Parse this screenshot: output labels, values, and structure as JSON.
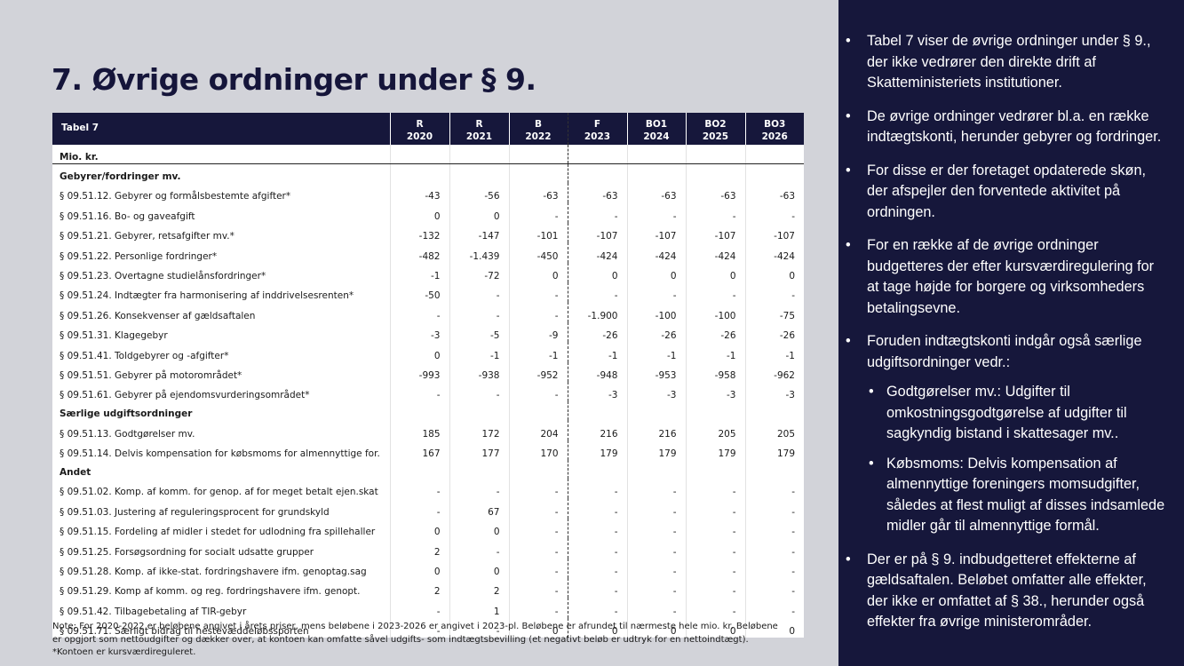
{
  "title": "7. Øvrige ordninger under § 9.",
  "table": {
    "label": "Tabel 7",
    "columns": [
      {
        "top": "R",
        "bottom": "2020"
      },
      {
        "top": "R",
        "bottom": "2021"
      },
      {
        "top": "B",
        "bottom": "2022"
      },
      {
        "top": "F",
        "bottom": "2023"
      },
      {
        "top": "BO1",
        "bottom": "2024"
      },
      {
        "top": "BO2",
        "bottom": "2025"
      },
      {
        "top": "BO3",
        "bottom": "2026"
      }
    ],
    "units": "Mio. kr.",
    "sections": [
      {
        "name": "Gebyrer/fordringer mv.",
        "rows": [
          {
            "label": "§ 09.51.12. Gebyrer og formålsbestemte afgifter*",
            "values": [
              "-43",
              "-56",
              "-63",
              "-63",
              "-63",
              "-63",
              "-63"
            ]
          },
          {
            "label": "§ 09.51.16. Bo- og gaveafgift",
            "values": [
              "0",
              "0",
              "-",
              "-",
              "-",
              "-",
              "-"
            ]
          },
          {
            "label": "§ 09.51.21. Gebyrer, retsafgifter mv.*",
            "values": [
              "-132",
              "-147",
              "-101",
              "-107",
              "-107",
              "-107",
              "-107"
            ]
          },
          {
            "label": "§ 09.51.22. Personlige fordringer*",
            "values": [
              "-482",
              "-1.439",
              "-450",
              "-424",
              "-424",
              "-424",
              "-424"
            ]
          },
          {
            "label": "§ 09.51.23. Overtagne studielånsfordringer*",
            "values": [
              "-1",
              "-72",
              "0",
              "0",
              "0",
              "0",
              "0"
            ]
          },
          {
            "label": "§ 09.51.24. Indtægter fra harmonisering af inddrivelsesrenten*",
            "values": [
              "-50",
              "-",
              "-",
              "-",
              "-",
              "-",
              "-"
            ]
          },
          {
            "label": "§ 09.51.26. Konsekvenser af gældsaftalen",
            "values": [
              "-",
              "-",
              "-",
              "-1.900",
              "-100",
              "-100",
              "-75"
            ]
          },
          {
            "label": "§ 09.51.31. Klagegebyr",
            "values": [
              "-3",
              "-5",
              "-9",
              "-26",
              "-26",
              "-26",
              "-26"
            ]
          },
          {
            "label": "§ 09.51.41. Toldgebyrer og -afgifter*",
            "values": [
              "0",
              "-1",
              "-1",
              "-1",
              "-1",
              "-1",
              "-1"
            ]
          },
          {
            "label": "§ 09.51.51. Gebyrer på motorområdet*",
            "values": [
              "-993",
              "-938",
              "-952",
              "-948",
              "-953",
              "-958",
              "-962"
            ]
          },
          {
            "label": "§ 09.51.61. Gebyrer på ejendomsvurderingsområdet*",
            "values": [
              "-",
              "-",
              "-",
              "-3",
              "-3",
              "-3",
              "-3"
            ]
          }
        ]
      },
      {
        "name": "Særlige udgiftsordninger",
        "rows": [
          {
            "label": "§ 09.51.13. Godtgørelser mv.",
            "values": [
              "185",
              "172",
              "204",
              "216",
              "216",
              "205",
              "205"
            ]
          },
          {
            "label": "§ 09.51.14. Delvis kompensation for købsmoms for almennyttige for.",
            "values": [
              "167",
              "177",
              "170",
              "179",
              "179",
              "179",
              "179"
            ]
          }
        ]
      },
      {
        "name": "Andet",
        "rows": [
          {
            "label": "§ 09.51.02. Komp. af komm. for genop. af for meget betalt ejen.skat",
            "values": [
              "-",
              "-",
              "-",
              "-",
              "-",
              "-",
              "-"
            ]
          },
          {
            "label": "§ 09.51.03. Justering af reguleringsprocent for grundskyld",
            "values": [
              "-",
              "67",
              "-",
              "-",
              "-",
              "-",
              "-"
            ]
          },
          {
            "label": "§ 09.51.15. Fordeling af midler i stedet for udlodning fra spillehaller",
            "values": [
              "0",
              "0",
              "-",
              "-",
              "-",
              "-",
              "-"
            ]
          },
          {
            "label": "§ 09.51.25. Forsøgsordning for socialt udsatte grupper",
            "values": [
              "2",
              "-",
              "-",
              "-",
              "-",
              "-",
              "-"
            ]
          },
          {
            "label": "§ 09.51.28. Komp. af ikke-stat. fordringshavere ifm. genoptag.sag",
            "values": [
              "0",
              "0",
              "-",
              "-",
              "-",
              "-",
              "-"
            ]
          },
          {
            "label": "§ 09.51.29. Komp af komm. og reg. fordringshavere ifm. genopt.",
            "values": [
              "2",
              "2",
              "-",
              "-",
              "-",
              "-",
              "-"
            ]
          },
          {
            "label": "§ 09.51.42. Tilbagebetaling af TIR-gebyr",
            "values": [
              "-",
              "1",
              "-",
              "-",
              "-",
              "-",
              "-"
            ]
          },
          {
            "label": "§ 09.51.71. Særligt bidrag til hestevæddeløbssporten",
            "values": [
              "-",
              "-",
              "0",
              "0",
              "0",
              "0",
              "0"
            ]
          }
        ]
      }
    ]
  },
  "note": {
    "line1": "Note: For 2020-2022 er beløbene angivet i årets priser, mens beløbene i 2023-2026 er angivet i 2023-pl. Beløbene er afrundet til nærmeste hele mio. kr. Beløbene",
    "line2": "er opgjort som nettoudgifter og dækker over, at kontoen kan omfatte såvel udgifts- som indtægtsbevilling (et negativt beløb er udtryk for en nettoindtægt).",
    "line3": "*Kontoen er kursværdireguleret."
  },
  "bullets": [
    "Tabel 7 viser de øvrige ordninger under § 9., der ikke vedrører den direkte drift af Skatteministeriets institutioner.",
    "De øvrige ordninger vedrører bl.a. en række indtægtskonti, herunder gebyrer og fordringer.",
    "For disse er der foretaget opdaterede skøn, der afspejler den forventede aktivitet på ordningen.",
    "For en række af de øvrige ordninger budgetteres der efter kursværdiregulering for at tage højde for borgere og virksomheders betalingsevne.",
    "Foruden indtægtskonti indgår også særlige udgiftsordninger vedr.:",
    "Der er på § 9. indbudgetteret effekterne af gældsaftalen. Beløbet omfatter alle effekter, der ikke er omfattet af § 38., herunder også effekter fra øvrige ministerområder."
  ],
  "sub_bullets": [
    "Godtgørelser mv.: Udgifter til omkostningsgodtgørelse af udgifter til sagkyndig bistand i skattesager mv..",
    "Købsmoms: Delvis kompensation af almennyttige foreningers momsudgifter, således at flest muligt af disses indsamlede midler går til almennyttige formål."
  ]
}
